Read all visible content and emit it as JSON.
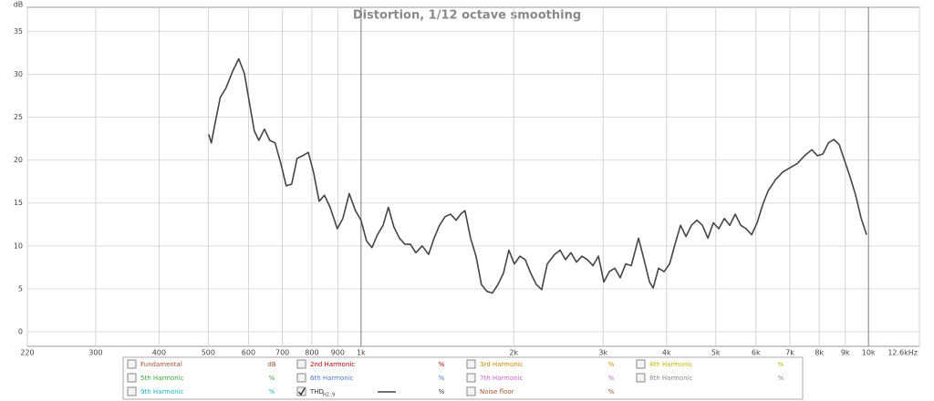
{
  "chart_data": {
    "type": "line",
    "title": "Distortion, 1/12 octave smoothing",
    "ylabel": "dB",
    "log_x": true,
    "grid": true,
    "xlim": [
      220,
      12600
    ],
    "xticks": [
      220,
      300,
      400,
      500,
      600,
      700,
      800,
      900,
      {
        "value": 1000,
        "label": "1k"
      },
      {
        "value": 2000,
        "label": "2k"
      },
      {
        "value": 3000,
        "label": "3k"
      },
      {
        "value": 4000,
        "label": "4k"
      },
      {
        "value": 5000,
        "label": "5k"
      },
      {
        "value": 6000,
        "label": "6k"
      },
      {
        "value": 7000,
        "label": "7k"
      },
      {
        "value": 8000,
        "label": "8k"
      },
      {
        "value": 9000,
        "label": "9k"
      },
      {
        "value": 10000,
        "label": "10k"
      },
      {
        "value": 12600,
        "label": "12.6kHz"
      }
    ],
    "ylim": [
      -1.7,
      37.8
    ],
    "yticks": [
      0,
      5,
      10,
      15,
      20,
      25,
      30,
      35
    ],
    "series": [
      {
        "name": "THD",
        "subscript": "H2..9",
        "unit": "%",
        "checked": true,
        "color": "#454545",
        "x": [
          501,
          507,
          516,
          528,
          542,
          558,
          574,
          589,
          603,
          616,
          629,
          645,
          661,
          677,
          695,
          712,
          730,
          748,
          767,
          787,
          806,
          827,
          847,
          869,
          898,
          921,
          948,
          975,
          1000,
          1025,
          1051,
          1077,
          1105,
          1132,
          1161,
          1190,
          1220,
          1251,
          1282,
          1320,
          1359,
          1393,
          1428,
          1464,
          1501,
          1539,
          1577,
          1603,
          1644,
          1685,
          1727,
          1771,
          1815,
          1861,
          1908,
          1956,
          2005,
          2056,
          2107,
          2160,
          2215,
          2270,
          2328,
          2406,
          2467,
          2529,
          2593,
          2658,
          2725,
          2793,
          2864,
          2936,
          3009,
          3085,
          3162,
          3242,
          3324,
          3408,
          3523,
          3611,
          3702,
          3764,
          3858,
          3956,
          4055,
          4157,
          4262,
          4369,
          4479,
          4592,
          4707,
          4826,
          4947,
          5071,
          5199,
          5330,
          5464,
          5601,
          5742,
          5887,
          6035,
          6187,
          6342,
          6555,
          6776,
          7003,
          7239,
          7483,
          7735,
          7935,
          8132,
          8336,
          8545,
          8758,
          8979,
          9204,
          9436,
          9674,
          9917
        ],
        "values": [
          23.0,
          22.0,
          24.4,
          27.3,
          28.4,
          30.3,
          31.8,
          30.1,
          26.6,
          23.4,
          22.3,
          23.6,
          22.3,
          22.0,
          19.6,
          17.0,
          17.2,
          20.2,
          20.5,
          20.9,
          18.6,
          15.2,
          15.9,
          14.5,
          12.0,
          13.2,
          16.1,
          14.1,
          13.0,
          10.6,
          9.8,
          11.3,
          12.4,
          14.5,
          12.2,
          10.9,
          10.2,
          10.2,
          9.2,
          10.0,
          9.0,
          10.9,
          12.4,
          13.4,
          13.7,
          13.0,
          13.8,
          14.1,
          10.9,
          8.8,
          5.5,
          4.7,
          4.5,
          5.5,
          6.8,
          9.5,
          7.9,
          8.8,
          8.4,
          6.8,
          5.5,
          4.9,
          7.9,
          9.0,
          9.5,
          8.4,
          9.2,
          8.1,
          8.8,
          8.4,
          7.7,
          8.8,
          5.8,
          7.0,
          7.4,
          6.3,
          7.9,
          7.7,
          10.9,
          8.4,
          5.8,
          5.1,
          7.4,
          7.0,
          7.9,
          10.2,
          12.4,
          11.1,
          12.4,
          13.0,
          12.4,
          10.9,
          12.7,
          12.0,
          13.2,
          12.4,
          13.7,
          12.4,
          12.0,
          11.3,
          12.7,
          14.8,
          16.4,
          17.7,
          18.6,
          19.1,
          19.6,
          20.5,
          21.2,
          20.5,
          20.7,
          22.0,
          22.4,
          21.8,
          19.9,
          18.0,
          15.9,
          13.2,
          11.3
        ]
      }
    ],
    "other_legend": [
      {
        "name": "Fundamental",
        "unit": "dB",
        "color": "#a0522d",
        "checked": false
      },
      {
        "name": "2nd Harmonic",
        "unit": "%",
        "color": "#c00000",
        "checked": false
      },
      {
        "name": "3rd Harmonic",
        "unit": "%",
        "color": "#d08a00",
        "checked": false
      },
      {
        "name": "4th Harmonic",
        "unit": "%",
        "color": "#c8b400",
        "checked": false
      },
      {
        "name": "5th Harmonic",
        "unit": "%",
        "color": "#3aa83a",
        "checked": false
      },
      {
        "name": "6th Harmonic",
        "unit": "%",
        "color": "#4a78d8",
        "checked": false
      },
      {
        "name": "7th Harmonic",
        "unit": "%",
        "color": "#d060d0",
        "checked": false
      },
      {
        "name": "8th Harmonic",
        "unit": "%",
        "color": "#888888",
        "checked": false
      },
      {
        "name": "9th Harmonic",
        "unit": "%",
        "color": "#20b0c0",
        "checked": false
      },
      {
        "name": "Noise floor",
        "unit": "%",
        "color": "#a0522d",
        "checked": false
      }
    ]
  }
}
